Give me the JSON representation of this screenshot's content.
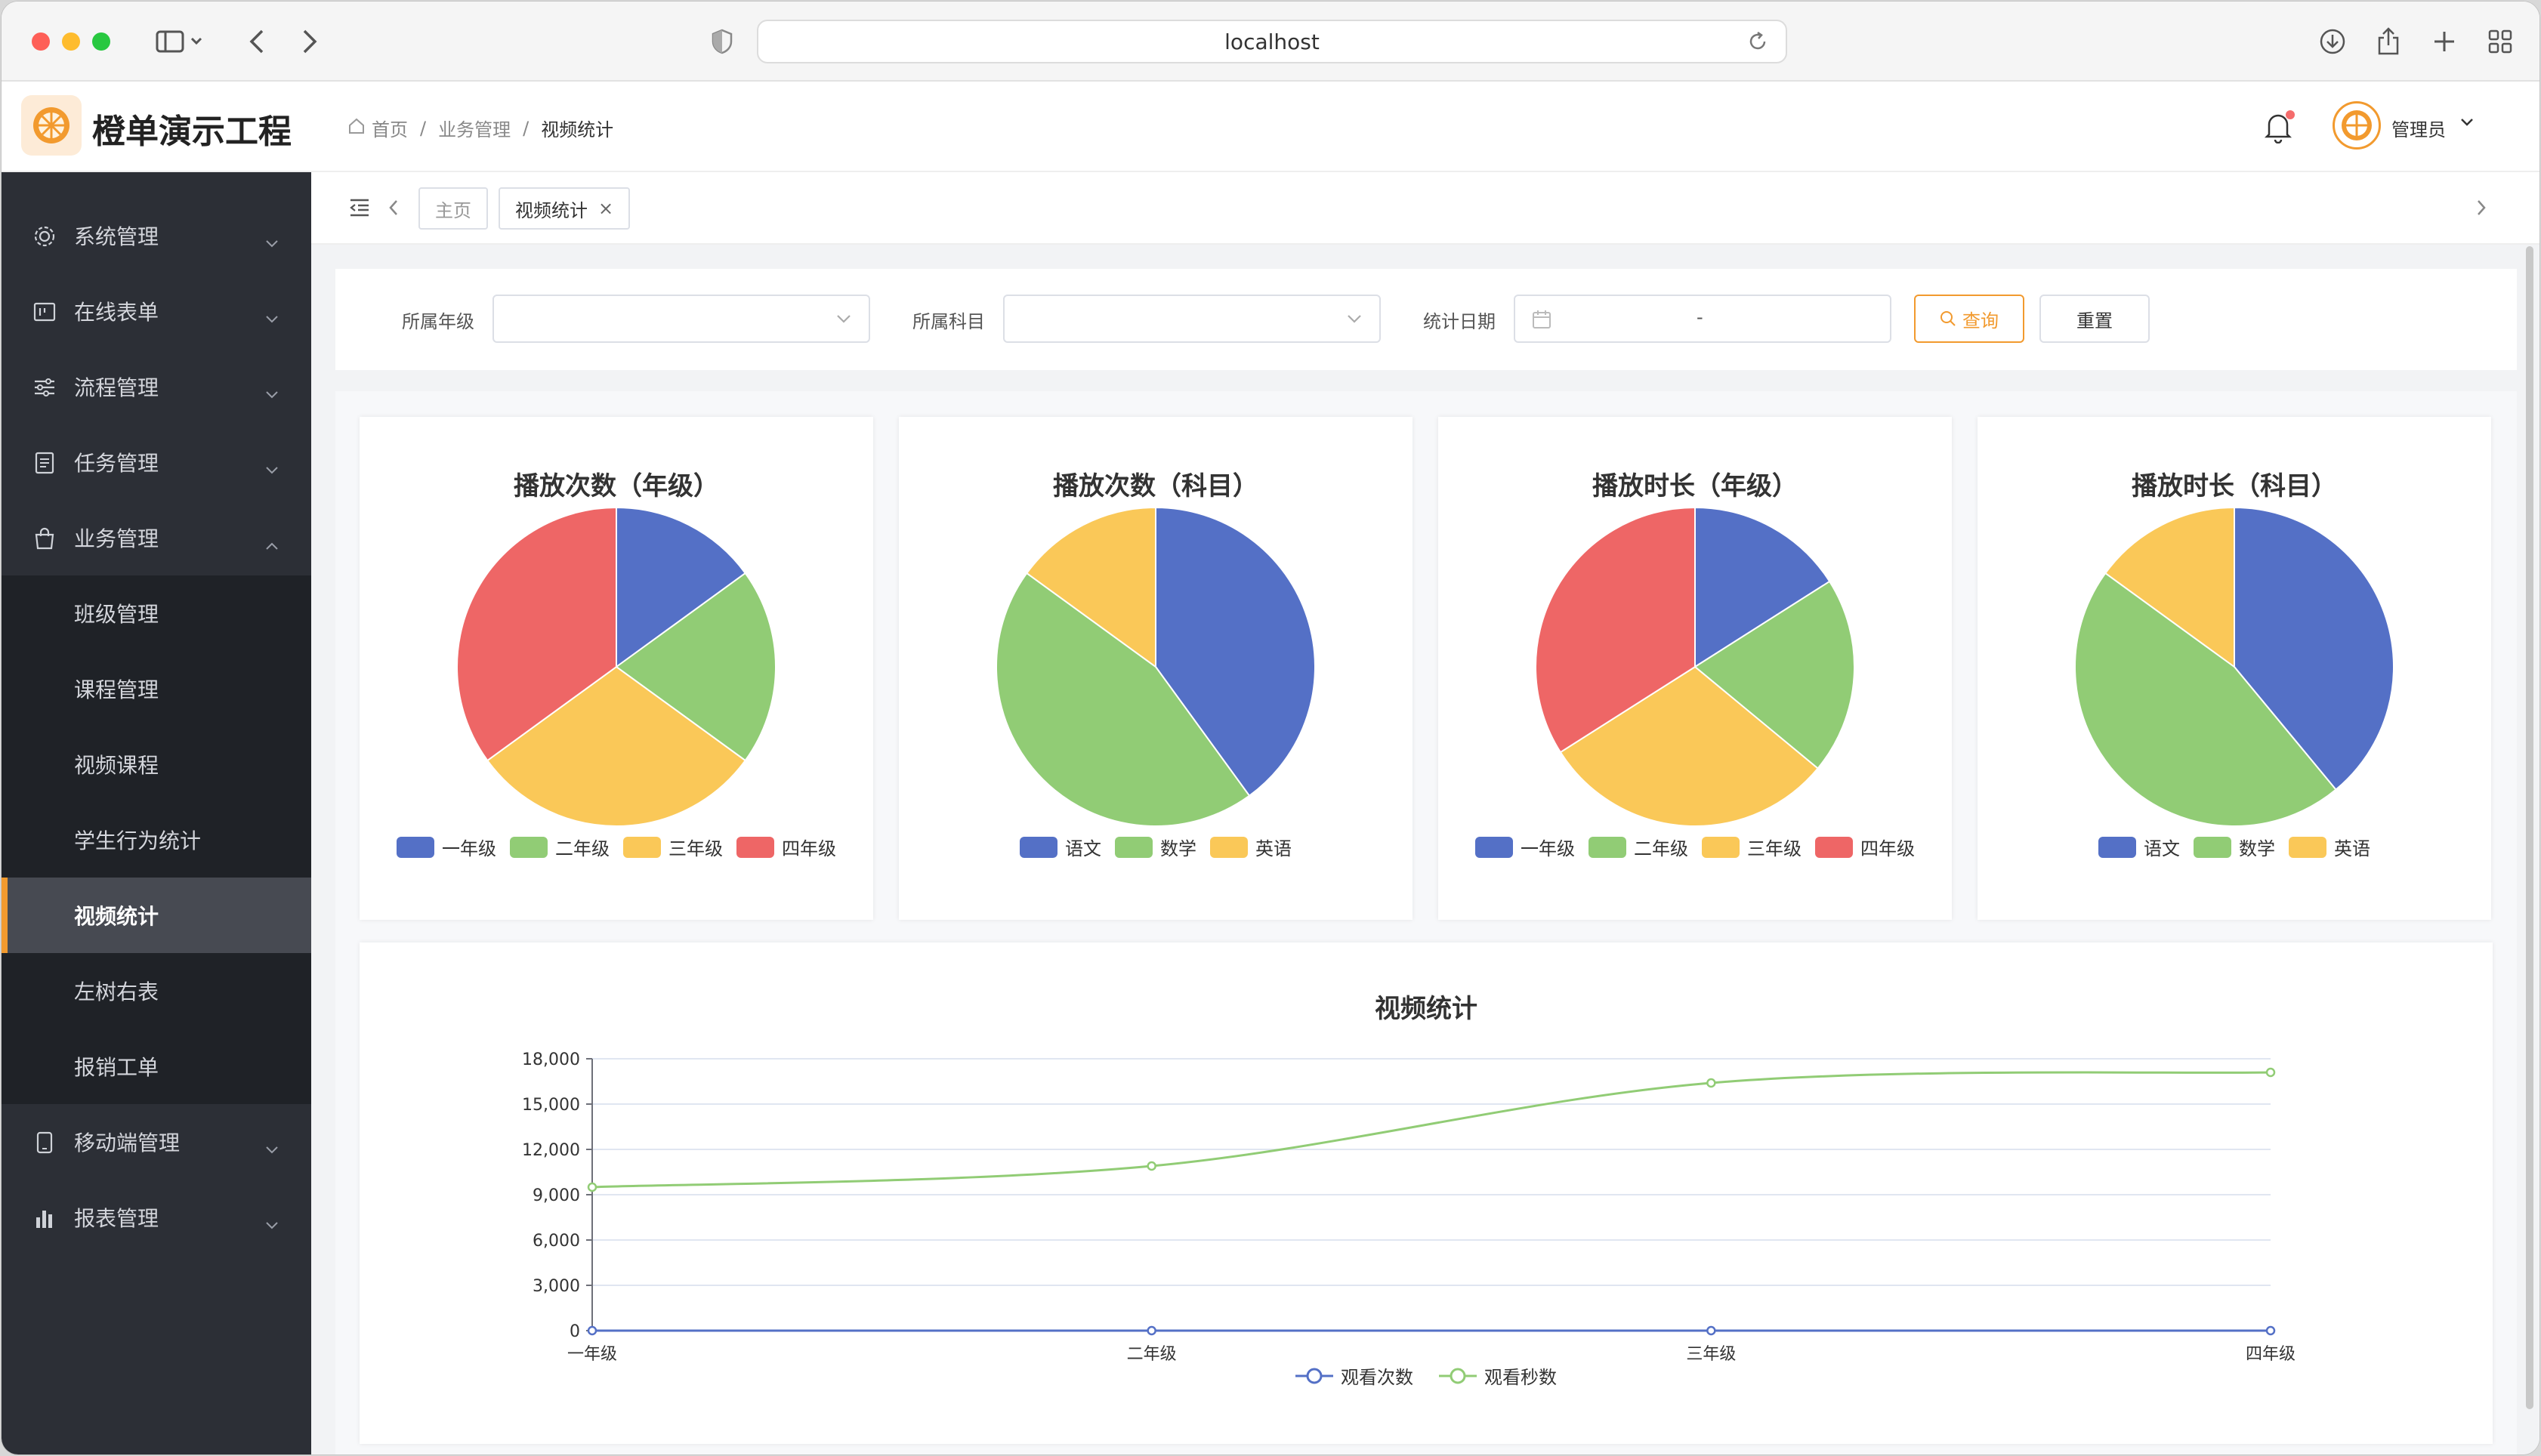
{
  "browser": {
    "url": "localhost"
  },
  "app": {
    "title": "橙单演示工程"
  },
  "breadcrumb": {
    "home": "首页",
    "section": "业务管理",
    "current": "视频统计",
    "sep": "/"
  },
  "user": {
    "name": "管理员"
  },
  "sidebar": {
    "top_items": [
      {
        "label": "系统管理",
        "icon": "gear-icon"
      },
      {
        "label": "在线表单",
        "icon": "form-icon"
      },
      {
        "label": "流程管理",
        "icon": "sliders-icon"
      },
      {
        "label": "任务管理",
        "icon": "document-icon"
      },
      {
        "label": "业务管理",
        "icon": "bag-icon"
      }
    ],
    "sub_items": [
      "班级管理",
      "课程管理",
      "视频课程",
      "学生行为统计",
      "视频统计",
      "左树右表",
      "报销工单"
    ],
    "bottom_items": [
      {
        "label": "移动端管理",
        "icon": "mobile-icon"
      },
      {
        "label": "报表管理",
        "icon": "bar-chart-icon"
      }
    ]
  },
  "tabs": {
    "home": "主页",
    "current": "视频统计",
    "close": "×"
  },
  "filters": {
    "grade_label": "所属年级",
    "subject_label": "所属科目",
    "date_label": "统计日期",
    "date_separator": "-",
    "query_button": "查询",
    "reset_button": "重置"
  },
  "colors": {
    "blue": "#5470c6",
    "green": "#91cc75",
    "yellow": "#fac858",
    "red": "#ee6666",
    "accent": "#f29a2e"
  },
  "chart_data": [
    {
      "type": "pie",
      "title": "播放次数（年级）",
      "labels": [
        "一年级",
        "二年级",
        "三年级",
        "四年级"
      ],
      "values": [
        15,
        20,
        30,
        35
      ],
      "colors": [
        "#5470c6",
        "#91cc75",
        "#fac858",
        "#ee6666"
      ]
    },
    {
      "type": "pie",
      "title": "播放次数（科目）",
      "labels": [
        "语文",
        "数学",
        "英语"
      ],
      "values": [
        40,
        45,
        15
      ],
      "colors": [
        "#5470c6",
        "#91cc75",
        "#fac858"
      ]
    },
    {
      "type": "pie",
      "title": "播放时长（年级）",
      "labels": [
        "一年级",
        "二年级",
        "三年级",
        "四年级"
      ],
      "values": [
        16,
        20,
        30,
        34
      ],
      "colors": [
        "#5470c6",
        "#91cc75",
        "#fac858",
        "#ee6666"
      ]
    },
    {
      "type": "pie",
      "title": "播放时长（科目）",
      "labels": [
        "语文",
        "数学",
        "英语"
      ],
      "values": [
        39,
        46,
        15
      ],
      "colors": [
        "#5470c6",
        "#91cc75",
        "#fac858"
      ]
    },
    {
      "type": "line",
      "title": "视频统计",
      "categories": [
        "一年级",
        "二年级",
        "三年级",
        "四年级"
      ],
      "series": [
        {
          "name": "观看次数",
          "values": [
            0,
            0,
            0,
            0
          ],
          "color": "#5470c6"
        },
        {
          "name": "观看秒数",
          "values": [
            9500,
            10900,
            16400,
            17100
          ],
          "color": "#91cc75"
        }
      ],
      "ylim": [
        0,
        18000
      ],
      "yticks": [
        "0",
        "3,000",
        "6,000",
        "9,000",
        "12,000",
        "15,000",
        "18,000"
      ],
      "grid": true,
      "smooth": true,
      "legend": "bottom-center"
    }
  ]
}
